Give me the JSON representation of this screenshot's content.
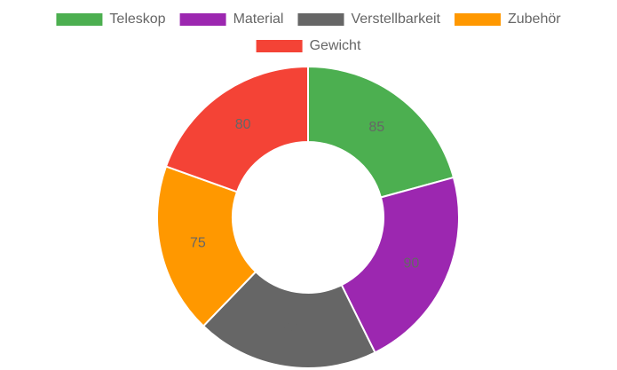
{
  "chart_data": {
    "type": "doughnut",
    "categories": [
      "Teleskop",
      "Material",
      "Verstellbarkeit",
      "Zubehör",
      "Gewicht"
    ],
    "values": [
      85,
      90,
      80,
      75,
      80
    ],
    "colors": [
      "#4caf50",
      "#9c27b0",
      "#666666",
      "#ff9800",
      "#f44336"
    ],
    "legend": "top"
  }
}
